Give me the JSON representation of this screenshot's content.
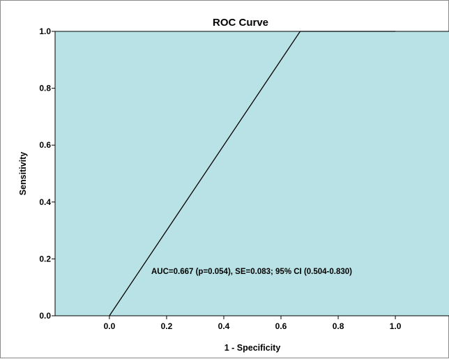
{
  "chart_data": {
    "type": "line",
    "title": "ROC Curve",
    "xlabel": "1 - Specificity",
    "ylabel": "Sensitivity",
    "xlim": [
      -0.19,
      1.19
    ],
    "ylim": [
      0.0,
      1.0
    ],
    "x_ticks": [
      "0.0",
      "0.2",
      "0.4",
      "0.6",
      "0.8",
      "1.0"
    ],
    "y_ticks": [
      "0.0",
      "0.2",
      "0.4",
      "0.6",
      "0.8",
      "1.0"
    ],
    "series": [
      {
        "x": [
          0.0,
          0.667,
          1.0
        ],
        "y": [
          0.0,
          1.0,
          1.0
        ]
      }
    ],
    "annotation": "AUC=0.667 (p=0.054), SE=0.083; 95% CI (0.504-0.830)",
    "grid": false,
    "legend": "none",
    "colors": {
      "plot_background": "#b8e2e5",
      "line": "#000000"
    }
  }
}
